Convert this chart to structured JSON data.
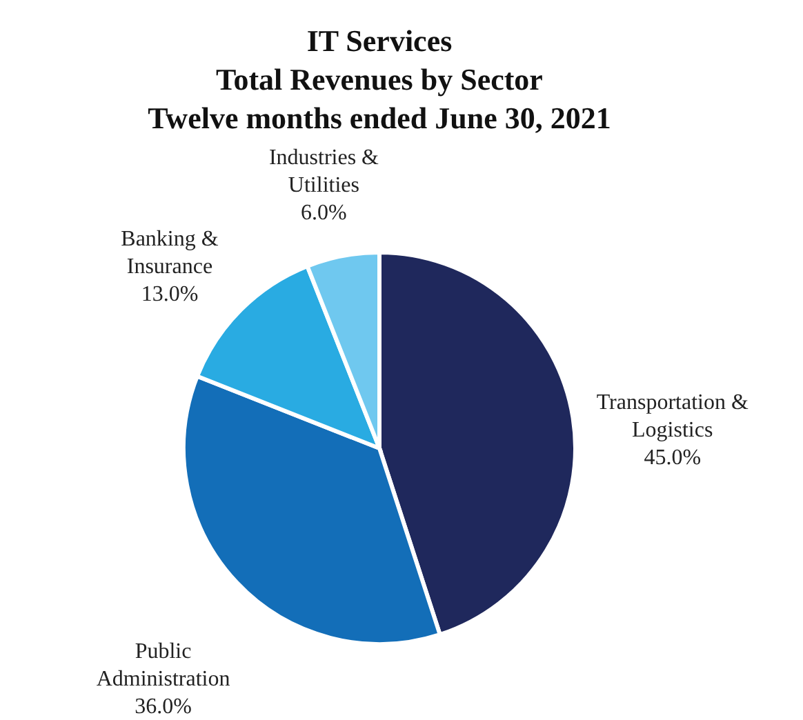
{
  "chart_data": {
    "type": "pie",
    "title": "IT Services",
    "subtitle": "Total Revenues by Sector",
    "annotations": [
      "Twelve months ended June 30, 2021"
    ],
    "categories": [
      "Transportation & Logistics",
      "Public Administration",
      "Banking & Insurance",
      "Industries & Utilities"
    ],
    "values": [
      45.0,
      36.0,
      13.0,
      6.0
    ],
    "value_labels": [
      "45.0%",
      "36.0%",
      "13.0%",
      "6.0%"
    ],
    "colors": [
      "#1f285c",
      "#136eb8",
      "#29abe2",
      "#6fc8ef"
    ],
    "legend": false
  }
}
